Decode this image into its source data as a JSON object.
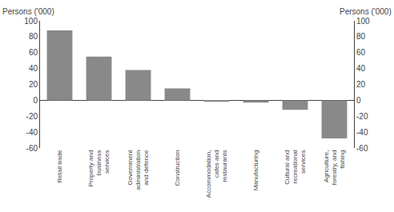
{
  "chart_data": {
    "type": "bar",
    "categories": [
      "Retail trade",
      "Property and\nbusiness\nservices",
      "Government\nadministration\nand defence",
      "Construction",
      "Accommodation,\ncafes and\nrestaurants",
      "Manufacturing",
      "Cultural and\nrecreational\nservices",
      "Agriculture,\nforestry, and\nfishing"
    ],
    "values": [
      88,
      55,
      38,
      15,
      -2,
      -3,
      -12,
      -48
    ],
    "color": "#898989",
    "ylim": [
      -60,
      100
    ],
    "yticks": [
      -60,
      -40,
      -20,
      0,
      20,
      40,
      60,
      80,
      100
    ],
    "y2lim": [
      -60,
      100
    ],
    "y2ticks": [
      -60,
      -40,
      -20,
      0,
      20,
      40,
      60,
      80,
      100
    ],
    "ylabel": "Persons ('000)",
    "y2label": "Persons ('000)",
    "grid": false
  }
}
